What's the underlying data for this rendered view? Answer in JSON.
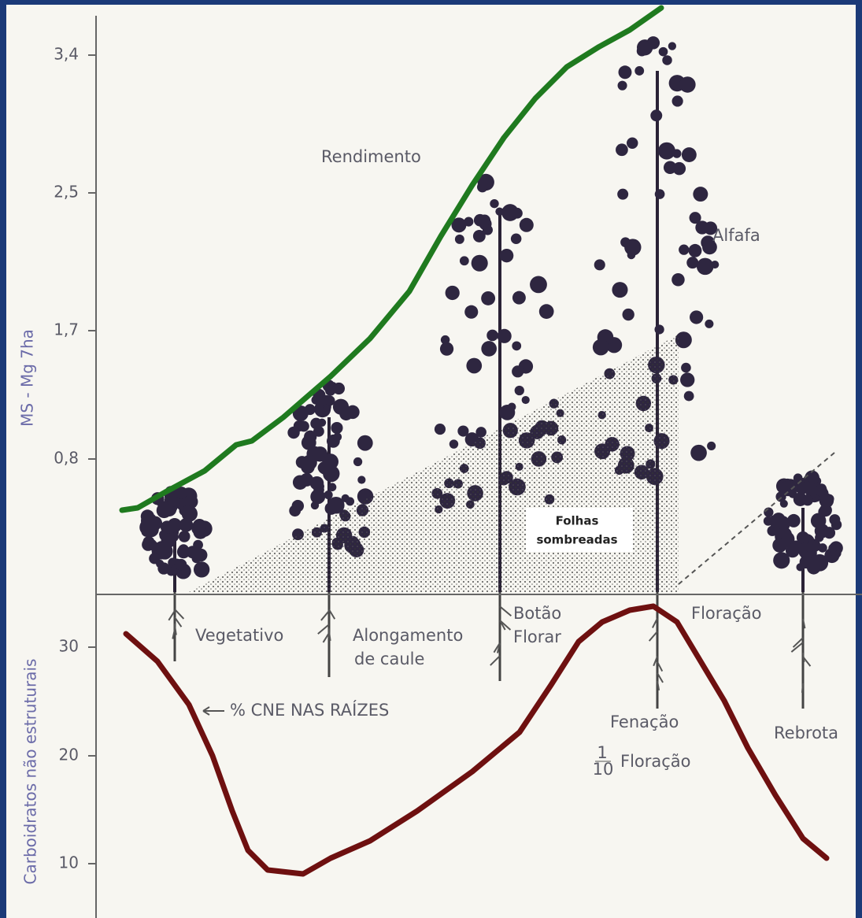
{
  "axes": {
    "upper": {
      "title": "MS - Mg 7ha",
      "ticks": [
        "3,4",
        "2,5",
        "1,7",
        "0,8"
      ]
    },
    "lower": {
      "title": "Carboidratos não estruturais",
      "ticks": [
        "30",
        "20",
        "10"
      ]
    }
  },
  "curves": {
    "yield": "Rendimento",
    "roots": "% CNE NAS RAÍZES"
  },
  "labels": {
    "plant": "Alfafa",
    "shaded": [
      "Folhas",
      "sombreadas"
    ]
  },
  "stages": {
    "vegetative": "Vegetativo",
    "elongation": [
      "Alongamento",
      "de caule"
    ],
    "bud": [
      "Botão",
      "Florar"
    ],
    "flowering": "Floração",
    "haying": "Fenação",
    "fraction": {
      "numerator": "1",
      "denominator": "10",
      "text": "Floração"
    },
    "regrowth": "Rebrota"
  }
}
